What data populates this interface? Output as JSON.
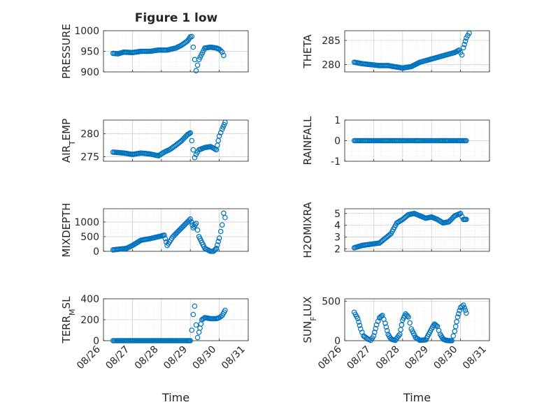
{
  "figure_title": "Figure 1 low",
  "chart_data": [
    {
      "type": "scatter",
      "ylabel": "PRESSURE",
      "ylabel_sub": "",
      "ylim": [
        900,
        1000
      ],
      "yticks": [
        900,
        950,
        1000
      ],
      "xlim": [
        "08/26",
        "08/31"
      ],
      "xtick_labels": [
        "08/26",
        "08/27",
        "08/28",
        "08/29",
        "08/30",
        "08/31"
      ],
      "show_xticklabels": false,
      "grid": true,
      "marker_color": "#0072BD",
      "x_days": [
        0.33,
        0.5,
        0.7,
        1.0,
        1.3,
        1.6,
        1.9,
        2.2,
        2.5,
        2.7,
        2.9,
        3.0,
        3.05,
        3.1,
        3.15,
        3.2,
        3.3,
        3.5,
        3.7,
        3.9,
        4.0,
        4.1,
        4.15
      ],
      "y": [
        945,
        944,
        948,
        947,
        950,
        950,
        953,
        953,
        958,
        965,
        975,
        985,
        986,
        960,
        930,
        903,
        930,
        958,
        960,
        958,
        955,
        948,
        940
      ]
    },
    {
      "type": "scatter",
      "ylabel": "THETA",
      "ylabel_sub": "",
      "ylim": [
        278.5,
        287
      ],
      "yticks": [
        280,
        285
      ],
      "xlim": [
        "08/26",
        "08/31"
      ],
      "xtick_labels": [
        "08/26",
        "08/27",
        "08/28",
        "08/29",
        "08/30",
        "08/31"
      ],
      "show_xticklabels": false,
      "grid": true,
      "marker_color": "#0072BD",
      "x_days": [
        0.33,
        0.6,
        0.9,
        1.2,
        1.5,
        1.8,
        2.0,
        2.3,
        2.6,
        2.9,
        3.2,
        3.5,
        3.8,
        3.95,
        4.05,
        4.1,
        4.2,
        4.3
      ],
      "y": [
        280.5,
        280.2,
        280.0,
        279.8,
        279.8,
        279.5,
        279.3,
        279.6,
        280.5,
        281.0,
        281.5,
        282.0,
        282.5,
        283.0,
        282.0,
        283.5,
        285.5,
        286.5
      ]
    },
    {
      "type": "scatter",
      "ylabel": "AIR",
      "ylabel_sub": "T",
      "ylabel_rest": "EMP",
      "ylim": [
        274,
        283
      ],
      "yticks": [
        275,
        280
      ],
      "xlim": [
        "08/26",
        "08/31"
      ],
      "xtick_labels": [
        "08/26",
        "08/27",
        "08/28",
        "08/29",
        "08/30",
        "08/31"
      ],
      "show_xticklabels": false,
      "grid": true,
      "marker_color": "#0072BD",
      "x_days": [
        0.33,
        0.7,
        1.0,
        1.3,
        1.6,
        1.9,
        2.1,
        2.3,
        2.5,
        2.7,
        2.9,
        3.0,
        3.05,
        3.1,
        3.15,
        3.2,
        3.3,
        3.5,
        3.7,
        3.9,
        4.0,
        4.1,
        4.2
      ],
      "y": [
        276,
        275.8,
        275.5,
        275.8,
        275.6,
        275.2,
        276,
        276.6,
        277.5,
        278.5,
        279.8,
        280.2,
        278.5,
        276.5,
        274.8,
        275.5,
        276.5,
        277,
        277.2,
        276.5,
        279.5,
        281,
        282.5
      ]
    },
    {
      "type": "scatter",
      "ylabel": "RAINFALL",
      "ylabel_sub": "",
      "ylim": [
        -1,
        1
      ],
      "yticks": [
        -1,
        0,
        1
      ],
      "xlim": [
        "08/26",
        "08/31"
      ],
      "xtick_labels": [
        "08/26",
        "08/27",
        "08/28",
        "08/29",
        "08/30",
        "08/31"
      ],
      "show_xticklabels": false,
      "grid": true,
      "marker_color": "#0072BD",
      "x_days": [
        0.33,
        0.6,
        0.9,
        1.2,
        1.5,
        1.8,
        2.1,
        2.4,
        2.7,
        3.0,
        3.3,
        3.6,
        3.9,
        4.2
      ],
      "y": [
        0,
        0,
        0,
        0,
        0,
        0,
        0,
        0,
        0,
        0,
        0,
        0,
        0,
        0
      ]
    },
    {
      "type": "scatter",
      "ylabel": "MIXDEPTH",
      "ylabel_sub": "",
      "ylim": [
        0,
        1450
      ],
      "yticks": [
        0,
        500,
        1000
      ],
      "xlim": [
        "08/26",
        "08/31"
      ],
      "xtick_labels": [
        "08/26",
        "08/27",
        "08/28",
        "08/29",
        "08/30",
        "08/31"
      ],
      "show_xticklabels": false,
      "grid": true,
      "marker_color": "#0072BD",
      "x_days": [
        0.33,
        0.6,
        0.8,
        1.0,
        1.3,
        1.6,
        1.9,
        2.1,
        2.2,
        2.4,
        2.6,
        2.8,
        3.0,
        3.1,
        3.2,
        3.3,
        3.4,
        3.5,
        3.7,
        3.8,
        3.9,
        4.0,
        4.1,
        4.15,
        4.2
      ],
      "y": [
        50,
        80,
        100,
        200,
        380,
        430,
        500,
        550,
        200,
        500,
        700,
        900,
        1100,
        800,
        950,
        500,
        300,
        100,
        0,
        0,
        100,
        450,
        900,
        1300,
        1150
      ]
    },
    {
      "type": "scatter",
      "ylabel": "H2OMIXRA",
      "ylabel_sub": "",
      "ylim": [
        1.8,
        5.4
      ],
      "yticks": [
        2,
        3,
        4,
        5
      ],
      "xlim": [
        "08/26",
        "08/31"
      ],
      "xtick_labels": [
        "08/26",
        "08/27",
        "08/28",
        "08/29",
        "08/30",
        "08/31"
      ],
      "show_xticklabels": false,
      "grid": true,
      "marker_color": "#0072BD",
      "x_days": [
        0.33,
        0.6,
        0.9,
        1.2,
        1.4,
        1.6,
        1.8,
        2.0,
        2.2,
        2.4,
        2.6,
        2.8,
        3.0,
        3.2,
        3.4,
        3.6,
        3.8,
        4.0,
        4.1,
        4.2
      ],
      "y": [
        2.1,
        2.3,
        2.4,
        2.5,
        2.9,
        3.3,
        4.2,
        4.5,
        4.9,
        5.0,
        4.8,
        4.6,
        4.7,
        4.5,
        4.2,
        4.3,
        4.8,
        5.0,
        4.5,
        4.5
      ]
    },
    {
      "type": "scatter",
      "ylabel": "TERR",
      "ylabel_sub": "M",
      "ylabel_rest": "SL",
      "ylim": [
        0,
        400
      ],
      "yticks": [
        0,
        200,
        400
      ],
      "xlim": [
        "08/26",
        "08/31"
      ],
      "xtick_labels": [
        "08/26",
        "08/27",
        "08/28",
        "08/29",
        "08/30",
        "08/31"
      ],
      "show_xticklabels": true,
      "xlabel": "Time",
      "grid": true,
      "marker_color": "#0072BD",
      "x_days": [
        0.33,
        0.7,
        1.0,
        1.4,
        1.8,
        2.2,
        2.6,
        2.9,
        3.0,
        3.05,
        3.1,
        3.15,
        3.2,
        3.25,
        3.3,
        3.4,
        3.5,
        3.7,
        3.9,
        4.0,
        4.1,
        4.2
      ],
      "y": [
        0,
        0,
        0,
        0,
        0,
        0,
        0,
        0,
        0,
        100,
        250,
        330,
        150,
        30,
        80,
        200,
        220,
        210,
        210,
        220,
        240,
        290
      ]
    },
    {
      "type": "scatter",
      "ylabel": "SUN",
      "ylabel_sub": "F",
      "ylabel_rest": "LUX",
      "ylim": [
        0,
        530
      ],
      "yticks": [
        0,
        500
      ],
      "xlim": [
        "08/26",
        "08/31"
      ],
      "xtick_labels": [
        "08/26",
        "08/27",
        "08/28",
        "08/29",
        "08/30",
        "08/31"
      ],
      "show_xticklabels": true,
      "xlabel": "Time",
      "grid": true,
      "marker_color": "#0072BD",
      "x_days": [
        0.33,
        0.45,
        0.55,
        0.65,
        0.8,
        0.9,
        1.0,
        1.1,
        1.2,
        1.3,
        1.4,
        1.5,
        1.6,
        1.75,
        1.9,
        2.0,
        2.1,
        2.2,
        2.3,
        2.45,
        2.6,
        2.8,
        2.9,
        3.0,
        3.1,
        3.2,
        3.3,
        3.4,
        3.5,
        3.6,
        3.7,
        3.8,
        3.9,
        4.0,
        4.1,
        4.2
      ],
      "y": [
        360,
        280,
        150,
        60,
        20,
        5,
        60,
        200,
        290,
        320,
        220,
        80,
        20,
        5,
        80,
        260,
        340,
        300,
        150,
        40,
        5,
        10,
        80,
        150,
        210,
        180,
        80,
        20,
        5,
        0,
        0,
        120,
        300,
        420,
        450,
        350
      ]
    }
  ]
}
